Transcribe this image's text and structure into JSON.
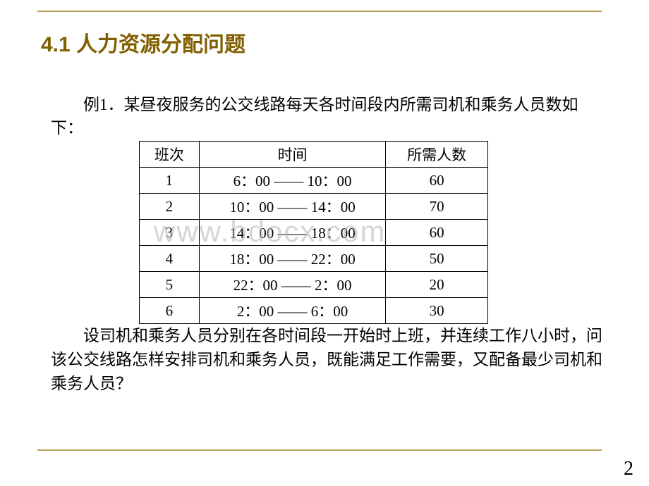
{
  "title": "4.1 人力资源分配问题",
  "intro": "例1．某昼夜服务的公交线路每天各时间段内所需司机和乘务人员数如下：",
  "table": {
    "headers": {
      "shift": "班次",
      "time": "时间",
      "count": "所需人数"
    },
    "rows": [
      {
        "shift": "1",
        "time": "6：00 —— 10：00",
        "count": "60"
      },
      {
        "shift": "2",
        "time": "10：00 —— 14：00",
        "count": "70"
      },
      {
        "shift": "3",
        "time": "14：00 —— 18：00",
        "count": "60"
      },
      {
        "shift": "4",
        "time": "18：00 —— 22：00",
        "count": "50"
      },
      {
        "shift": "5",
        "time": "22：00 —— 2：00",
        "count": "20"
      },
      {
        "shift": "6",
        "time": "2：00 —— 6：00",
        "count": "30"
      }
    ]
  },
  "body": "设司机和乘务人员分别在各时间段一开始时上班，并连续工作八小时，问该公交线路怎样安排司机和乘务人员，既能满足工作需要，又配备最少司机和乘务人员？",
  "watermark": "www.bdocx.com",
  "pageNumber": "2",
  "colors": {
    "accent": "#b8a05a",
    "titleColor": "#806000",
    "text": "#000000",
    "background": "#ffffff"
  }
}
